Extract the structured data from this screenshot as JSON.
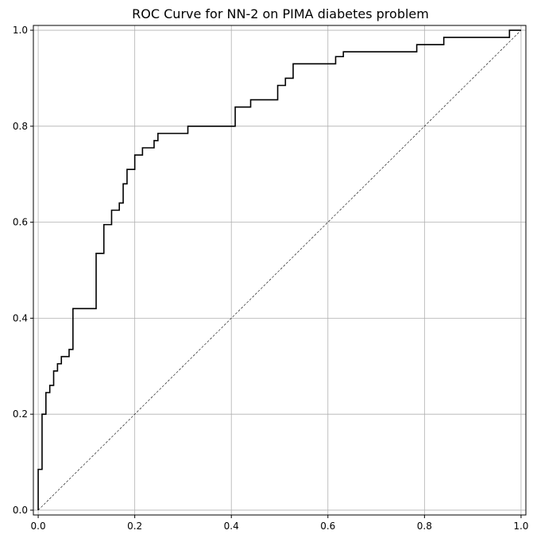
{
  "chart_data": {
    "type": "line",
    "title": "ROC Curve for NN-2 on PIMA diabetes problem",
    "xlabel": "",
    "ylabel": "",
    "xlim": [
      -0.01,
      1.01
    ],
    "ylim": [
      -0.01,
      1.01
    ],
    "grid": true,
    "x_ticks": [
      0.0,
      0.2,
      0.4,
      0.6,
      0.8,
      1.0
    ],
    "y_ticks": [
      0.0,
      0.2,
      0.4,
      0.6,
      0.8,
      1.0
    ],
    "x_tick_labels": [
      "0.0",
      "0.2",
      "0.4",
      "0.6",
      "0.8",
      "1.0"
    ],
    "y_tick_labels": [
      "0.0",
      "0.2",
      "0.4",
      "0.6",
      "0.8",
      "1.0"
    ],
    "series": [
      {
        "step": true,
        "fpr": [
          0.0,
          0.0,
          0.008,
          0.008,
          0.016,
          0.016,
          0.024,
          0.024,
          0.032,
          0.032,
          0.04,
          0.04,
          0.048,
          0.048,
          0.064,
          0.064,
          0.072,
          0.072,
          0.12,
          0.12,
          0.136,
          0.136,
          0.152,
          0.152,
          0.168,
          0.168,
          0.176,
          0.176,
          0.184,
          0.184,
          0.2,
          0.2,
          0.216,
          0.216,
          0.24,
          0.24,
          0.248,
          0.248,
          0.31,
          0.31,
          0.408,
          0.408,
          0.44,
          0.44,
          0.496,
          0.496,
          0.512,
          0.512,
          0.528,
          0.528,
          0.616,
          0.616,
          0.632,
          0.632,
          0.784,
          0.784,
          0.84,
          0.84,
          0.976,
          0.976,
          1.0
        ],
        "tpr": [
          0.0,
          0.085,
          0.085,
          0.2,
          0.2,
          0.245,
          0.245,
          0.26,
          0.26,
          0.29,
          0.29,
          0.305,
          0.305,
          0.32,
          0.32,
          0.335,
          0.335,
          0.42,
          0.42,
          0.535,
          0.535,
          0.595,
          0.595,
          0.625,
          0.625,
          0.64,
          0.64,
          0.68,
          0.68,
          0.71,
          0.71,
          0.74,
          0.74,
          0.755,
          0.755,
          0.77,
          0.77,
          0.785,
          0.785,
          0.8,
          0.8,
          0.84,
          0.84,
          0.855,
          0.855,
          0.885,
          0.885,
          0.9,
          0.9,
          0.93,
          0.93,
          0.945,
          0.945,
          0.955,
          0.955,
          0.97,
          0.97,
          0.985,
          0.985,
          1.0,
          1.0
        ]
      },
      {
        "style": "dashed",
        "fpr": [
          0.0,
          1.0
        ],
        "tpr": [
          0.0,
          1.0
        ]
      }
    ]
  }
}
